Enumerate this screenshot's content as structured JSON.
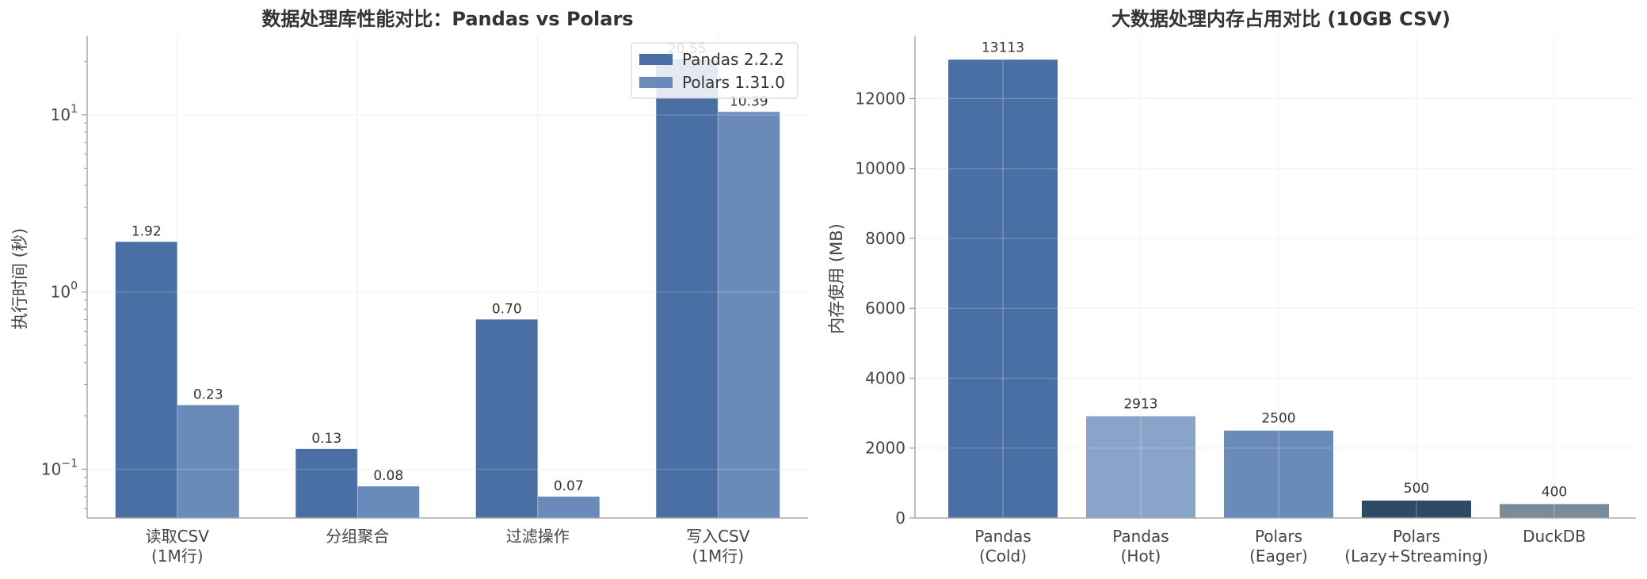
{
  "chart_data": [
    {
      "type": "bar",
      "title": "数据处理库性能对比：Pandas vs Polars",
      "ylabel": "执行时间 (秒)",
      "yscale": "log",
      "ylim": [
        0.053,
        28
      ],
      "yticks": [
        {
          "value": 0.1,
          "base": "10",
          "exp": "−1"
        },
        {
          "value": 1,
          "base": "10",
          "exp": "0"
        },
        {
          "value": 10,
          "base": "10",
          "exp": "1"
        }
      ],
      "categories": [
        [
          "读取CSV",
          "(1M行)"
        ],
        [
          "分组聚合"
        ],
        [
          "过滤操作"
        ],
        [
          "写入CSV",
          "(1M行)"
        ]
      ],
      "series": [
        {
          "name": "Pandas 2.2.2",
          "color": "#4a6fa5",
          "values": [
            1.92,
            0.13,
            0.7,
            20.55
          ],
          "labels": [
            "1.92",
            "0.13",
            "0.70",
            "20.55"
          ]
        },
        {
          "name": "Polars 1.31.0",
          "color": "#6a8bba",
          "values": [
            0.23,
            0.08,
            0.07,
            10.39
          ],
          "labels": [
            "0.23",
            "0.08",
            "0.07",
            "10.39"
          ]
        }
      ],
      "legend": "top-right",
      "grid": true
    },
    {
      "type": "bar",
      "title": "大数据处理内存占用对比 (10GB CSV)",
      "ylabel": "内存使用 (MB)",
      "ylim": [
        0,
        13800
      ],
      "yticks": [
        0,
        2000,
        4000,
        6000,
        8000,
        10000,
        12000
      ],
      "categories": [
        [
          "Pandas",
          "(Cold)"
        ],
        [
          "Pandas",
          "(Hot)"
        ],
        [
          "Polars",
          "(Eager)"
        ],
        [
          "Polars",
          "(Lazy+Streaming)"
        ],
        [
          "DuckDB"
        ]
      ],
      "values": [
        13113,
        2913,
        2500,
        500,
        400
      ],
      "labels": [
        "13113",
        "2913",
        "2500",
        "500",
        "400"
      ],
      "colors": [
        "#4a6fa5",
        "#8aa3c8",
        "#6a8bba",
        "#2e4a66",
        "#7a8b99"
      ],
      "grid": true
    }
  ]
}
